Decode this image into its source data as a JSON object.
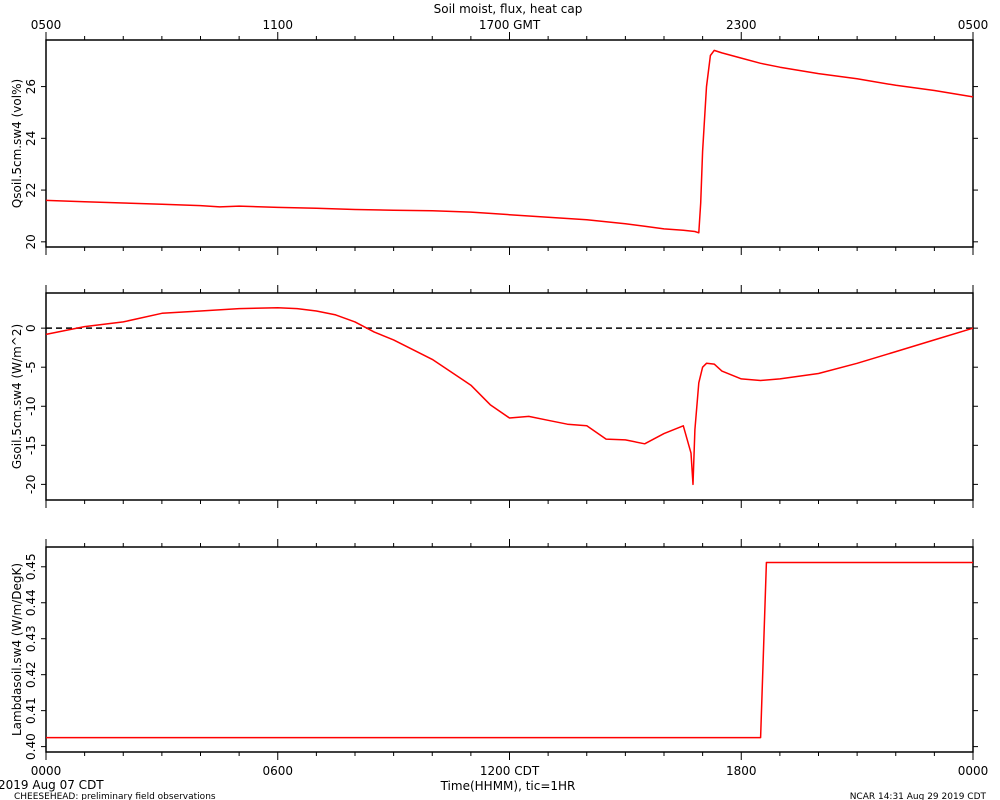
{
  "title": "Soil moist, flux, heat cap",
  "top_axis": {
    "ticks": [
      "0500",
      "1100",
      "1700 GMT",
      "2300",
      "0500"
    ]
  },
  "bottom_axis": {
    "ticks": [
      "0000",
      "0600",
      "1200 CDT",
      "1800",
      "0000"
    ],
    "label": "Time(HHMM), tic=1HR"
  },
  "footer": {
    "date": "2019 Aug 07 CDT",
    "project": "CHEESEHEAD: preliminary field observations",
    "credit": "NCAR 14:31 Aug 29 2019 CDT"
  },
  "colors": {
    "series": "#ff0000",
    "axis": "#000000",
    "zero_line": "#000000"
  },
  "chart_data": [
    {
      "type": "line",
      "ylabel": "Qsoil.5cm.sw4 (vol%)",
      "xlim": [
        0,
        24
      ],
      "ylim": [
        19.8,
        27.8
      ],
      "yticks": [
        20,
        22,
        24,
        26
      ],
      "series": [
        {
          "x": [
            0,
            1,
            2,
            3,
            4,
            4.5,
            5,
            6,
            7,
            8,
            9,
            10,
            11,
            11.5,
            12,
            12.5,
            13,
            14,
            15,
            15.5,
            16,
            16.5,
            16.8,
            16.9,
            16.95,
            17.0,
            17.1,
            17.2,
            17.3,
            17.5,
            18,
            18.5,
            19,
            20,
            21,
            22,
            23,
            24
          ],
          "values": [
            21.6,
            21.55,
            21.5,
            21.45,
            21.4,
            21.35,
            21.38,
            21.33,
            21.3,
            21.25,
            21.22,
            21.2,
            21.15,
            21.1,
            21.05,
            21.0,
            20.95,
            20.85,
            20.7,
            20.6,
            20.5,
            20.45,
            20.4,
            20.35,
            21.5,
            23.5,
            26.0,
            27.2,
            27.4,
            27.3,
            27.1,
            26.9,
            26.75,
            26.5,
            26.3,
            26.05,
            25.85,
            25.6
          ]
        }
      ]
    },
    {
      "type": "line",
      "ylabel": "Gsoil.5cm.sw4 (W/m^2)",
      "xlim": [
        0,
        24
      ],
      "ylim": [
        -22,
        4.5
      ],
      "yticks": [
        0,
        -5,
        -10,
        -15,
        -20
      ],
      "zero_line": true,
      "series": [
        {
          "x": [
            0,
            1,
            2,
            3,
            4,
            5,
            6,
            6.5,
            7,
            7.5,
            8,
            8.5,
            9,
            10,
            11,
            11.5,
            12,
            12.5,
            13,
            13.5,
            14,
            14.5,
            15,
            15.5,
            16,
            16.5,
            16.7,
            16.75,
            16.8,
            16.9,
            17.0,
            17.1,
            17.3,
            17.5,
            18,
            18.5,
            19,
            20,
            21,
            22,
            23,
            24
          ],
          "values": [
            -0.8,
            0.2,
            0.8,
            1.9,
            2.2,
            2.5,
            2.6,
            2.5,
            2.2,
            1.7,
            0.8,
            -0.5,
            -1.5,
            -4.0,
            -7.3,
            -9.8,
            -11.5,
            -11.3,
            -11.8,
            -12.3,
            -12.5,
            -14.2,
            -14.3,
            -14.8,
            -13.5,
            -12.5,
            -16.0,
            -20.0,
            -13.0,
            -7.0,
            -5.0,
            -4.5,
            -4.6,
            -5.5,
            -6.5,
            -6.7,
            -6.5,
            -5.8,
            -4.5,
            -3.0,
            -1.5,
            0.0
          ]
        }
      ]
    },
    {
      "type": "line",
      "ylabel": "Lambdasoil.sw4 (W/m/DegK)",
      "xlim": [
        0,
        24
      ],
      "ylim": [
        0.3985,
        0.4555
      ],
      "yticks": [
        0.4,
        0.41,
        0.42,
        0.43,
        0.44,
        0.45
      ],
      "series": [
        {
          "x": [
            0,
            18.5,
            18.65,
            24
          ],
          "values": [
            0.4025,
            0.4025,
            0.4512,
            0.4512
          ]
        }
      ]
    }
  ]
}
